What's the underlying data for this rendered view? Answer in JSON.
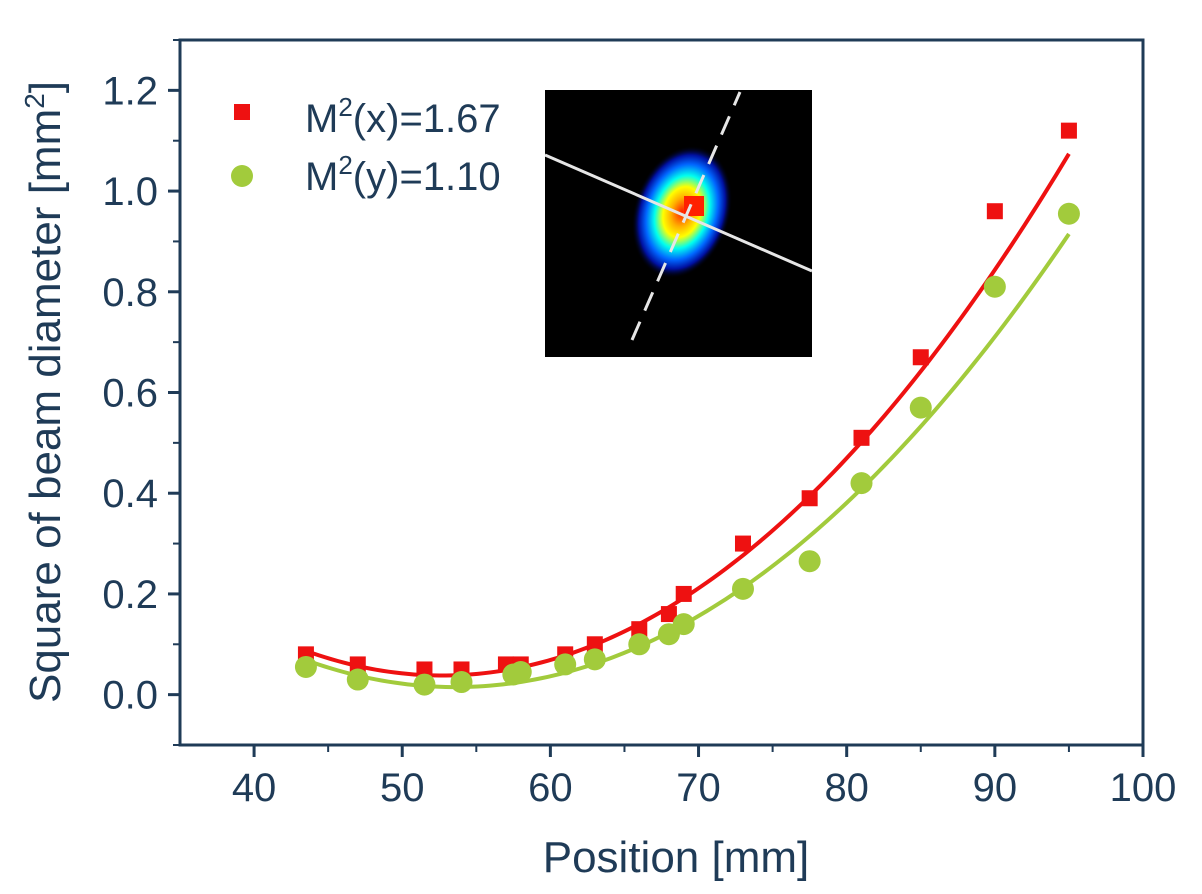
{
  "chart_data": {
    "type": "scatter",
    "title": "",
    "xlabel": "Position [mm]",
    "ylabel_prefix": "Square of beam diameter [mm",
    "ylabel_sup": "2",
    "ylabel_suffix": "]",
    "xlim": [
      35,
      100
    ],
    "ylim": [
      -0.1,
      1.3
    ],
    "xticks": [
      40,
      50,
      60,
      70,
      80,
      90,
      100
    ],
    "yticks": [
      0.0,
      0.2,
      0.4,
      0.6,
      0.8,
      1.0,
      1.2
    ],
    "xtick_labels": [
      "40",
      "50",
      "60",
      "70",
      "80",
      "90",
      "100"
    ],
    "ytick_labels": [
      "0.0",
      "0.2",
      "0.4",
      "0.6",
      "0.8",
      "1.0",
      "1.2"
    ],
    "legend_position": "top-left",
    "series": [
      {
        "name": "M2(x)",
        "legend_base": "M",
        "legend_sup": "2",
        "legend_rest": "(x)=1.67",
        "marker": "square",
        "color": "#ee1111",
        "x": [
          43.5,
          47,
          51.5,
          54,
          57,
          58,
          61,
          63,
          66,
          68,
          69,
          73,
          77.5,
          81,
          85,
          90,
          95
        ],
        "y": [
          0.08,
          0.06,
          0.05,
          0.05,
          0.06,
          0.06,
          0.08,
          0.1,
          0.13,
          0.16,
          0.2,
          0.3,
          0.39,
          0.51,
          0.67,
          0.96,
          1.12
        ],
        "fit": {
          "x0": 52.7,
          "y0": 0.038,
          "k": 0.000579,
          "from": 43.5,
          "to": 95
        }
      },
      {
        "name": "M2(y)",
        "legend_base": "M",
        "legend_sup": "2",
        "legend_rest": "(y)=1.10",
        "marker": "circle",
        "color": "#a2cb3c",
        "x": [
          43.5,
          47,
          51.5,
          54,
          57.5,
          58,
          61,
          63,
          66,
          68,
          69,
          73,
          77.5,
          81,
          85,
          90,
          95
        ],
        "y": [
          0.055,
          0.03,
          0.02,
          0.025,
          0.04,
          0.045,
          0.06,
          0.07,
          0.1,
          0.12,
          0.14,
          0.21,
          0.265,
          0.42,
          0.57,
          0.81,
          0.955
        ],
        "fit": {
          "x0": 53.6,
          "y0": 0.015,
          "k": 0.000525,
          "from": 43.5,
          "to": 95
        }
      }
    ],
    "inset": {
      "description_color_scheme": [
        "#000000",
        "#0044ff",
        "#00ffff",
        "#ffff00",
        "#ff2000"
      ]
    }
  }
}
